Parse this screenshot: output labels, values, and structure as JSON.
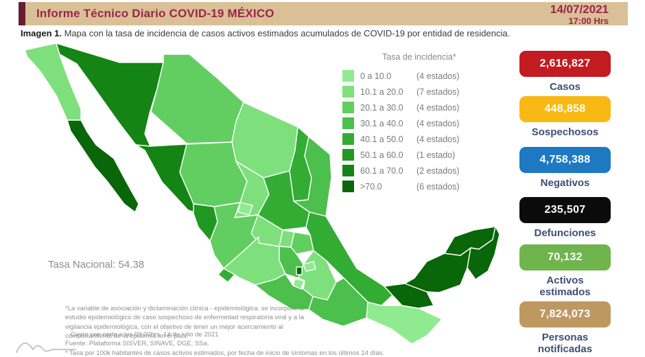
{
  "header": {
    "title": "Informe Técnico Diario COVID-19 MÉXICO",
    "date": "14/07/2021",
    "time": "17:00 Hrs"
  },
  "caption": {
    "label": "Imagen 1.",
    "text": " Mapa con la tasa de incidencia de casos activos estimados acumulados de COVID-19 por entidad de residencia."
  },
  "legend": {
    "title": "Tasa de incidencia*",
    "rows": [
      {
        "range": "0   a  10.0",
        "count": "(4 estados)"
      },
      {
        "range": "10.1 a  20.0",
        "count": "(7 estados)"
      },
      {
        "range": "20.1 a  30.0",
        "count": "(4 estados)"
      },
      {
        "range": "30.1 a  40.0",
        "count": "(4 estados)"
      },
      {
        "range": "40.1 a  50.0",
        "count": "(4 estados)"
      },
      {
        "range": "50.1 a  60.0",
        "count": "(1 estado)"
      },
      {
        "range": "60.1 a  70.0",
        "count": "(2 estados)"
      },
      {
        "range": ">70.0",
        "count": "(6 estados)"
      }
    ]
  },
  "national_rate": "Tasa Nacional: 54.38",
  "stats": [
    {
      "value": "2,616,827",
      "label": "Casos",
      "color": "#C21B21"
    },
    {
      "value": "448,858",
      "label": "Sospechosos",
      "color": "#F9B915"
    },
    {
      "value": "4,758,388",
      "label": "Negativos",
      "color": "#1E79C2"
    },
    {
      "value": "235,507",
      "label": "Defunciones",
      "color": "#0B0B0B"
    },
    {
      "value": "70,132",
      "label": "Activos estimados",
      "color": "#6FB44D"
    },
    {
      "value": "7,824,073",
      "label": "Personas notificadas",
      "color": "#BE9861"
    }
  ],
  "footnotes": {
    "paragraph": "*La variable de asociación y dictaminación clínica - epidemiológica, se incorporó al estudio epidemiológico de caso sospechoso de enfermedad respiratoria viral y a la vigilancia epidemiológica, con el objetivo de tener un mejor acercamiento al comportamiento de la epidemia en el país.",
    "lines": [
      "Cierre con corte a las 09:00hrs, 14 de julio de 2021",
      "Fuente: Plataforma SISVER, SINAVE, DGE, SSa.",
      "* Tasa por 100k habitantes de casos activos estimados, por fecha de inicio de síntomas en los últimos 14 días."
    ]
  },
  "map": {
    "palette": [
      "#90EB90",
      "#7DE07D",
      "#62CE62",
      "#4CBF4C",
      "#33AC33",
      "#219821",
      "#148414",
      "#096609"
    ],
    "stroke": "#FFFFFF",
    "states": {
      "baja_california": {
        "name": "Baja California",
        "bucket": 1
      },
      "baja_california_sur": {
        "name": "Baja California Sur",
        "bucket": 7
      },
      "sonora": {
        "name": "Sonora",
        "bucket": 6
      },
      "chihuahua": {
        "name": "Chihuahua",
        "bucket": 2
      },
      "coahuila": {
        "name": "Coahuila",
        "bucket": 1
      },
      "nuevo_leon": {
        "name": "Nuevo León",
        "bucket": 4
      },
      "tamaulipas": {
        "name": "Tamaulipas",
        "bucket": 3
      },
      "sinaloa": {
        "name": "Sinaloa",
        "bucket": 6
      },
      "durango": {
        "name": "Durango",
        "bucket": 2
      },
      "zacatecas": {
        "name": "Zacatecas",
        "bucket": 1
      },
      "san_luis_potosi": {
        "name": "San Luis Potosí",
        "bucket": 4
      },
      "nayarit": {
        "name": "Nayarit",
        "bucket": 5
      },
      "jalisco": {
        "name": "Jalisco",
        "bucket": 2
      },
      "aguascalientes": {
        "name": "Aguascalientes",
        "bucket": 0
      },
      "guanajuato": {
        "name": "Guanajuato",
        "bucket": 1
      },
      "queretaro": {
        "name": "Querétaro",
        "bucket": 1
      },
      "hidalgo": {
        "name": "Hidalgo",
        "bucket": 2
      },
      "estado_de_mexico": {
        "name": "Estado de México",
        "bucket": 3
      },
      "cdmx": {
        "name": "Ciudad de México",
        "bucket": 7
      },
      "tlaxcala": {
        "name": "Tlaxcala",
        "bucket": 0
      },
      "morelos": {
        "name": "Morelos",
        "bucket": 0
      },
      "puebla": {
        "name": "Puebla",
        "bucket": 1
      },
      "veracruz": {
        "name": "Veracruz",
        "bucket": 4
      },
      "michoacan": {
        "name": "Michoacán",
        "bucket": 1
      },
      "colima": {
        "name": "Colima",
        "bucket": 4
      },
      "guerrero": {
        "name": "Guerrero",
        "bucket": 3
      },
      "oaxaca": {
        "name": "Oaxaca",
        "bucket": 3
      },
      "chiapas": {
        "name": "Chiapas",
        "bucket": 0
      },
      "tabasco": {
        "name": "Tabasco",
        "bucket": 7
      },
      "campeche": {
        "name": "Campeche",
        "bucket": 7
      },
      "yucatan": {
        "name": "Yucatán",
        "bucket": 7
      },
      "quintana_roo": {
        "name": "Quintana Roo",
        "bucket": 7
      }
    }
  }
}
